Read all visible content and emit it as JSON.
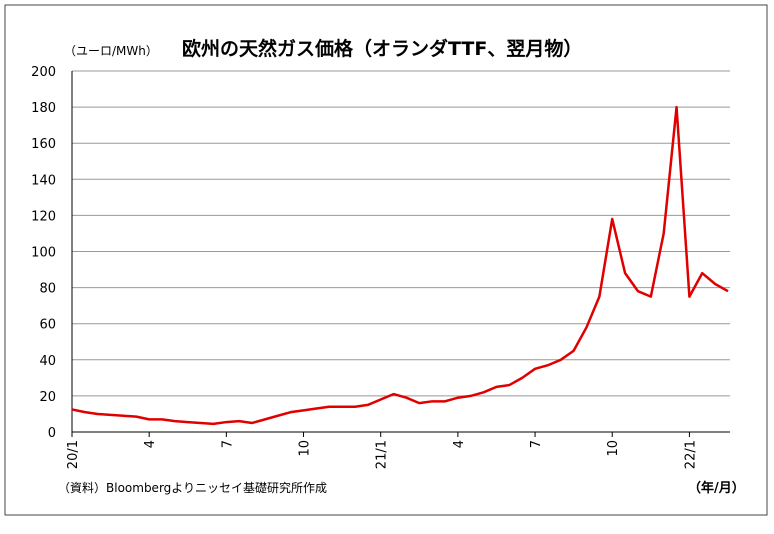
{
  "chart_data": {
    "type": "line",
    "title": "欧州の天然ガス価格（オランダTTF、翌月物）",
    "y_label": "（ユーロ/MWh）",
    "x_label": "（年/月）",
    "source": "（資料）Bloombergよりニッセイ基礎研究所作成",
    "categories": [
      "20/1",
      null,
      null,
      null,
      null,
      null,
      "4",
      null,
      null,
      null,
      null,
      null,
      "7",
      null,
      null,
      null,
      null,
      null,
      "10",
      null,
      null,
      null,
      null,
      null,
      "21/1",
      null,
      null,
      null,
      null,
      null,
      "4",
      null,
      null,
      null,
      null,
      null,
      "7",
      null,
      null,
      null,
      null,
      null,
      "10",
      null,
      null,
      null,
      null,
      null,
      "22/1",
      null,
      null,
      null
    ],
    "series": [
      {
        "name": "TTF",
        "color": "#e00000",
        "values": [
          12.5,
          11,
          10,
          9.5,
          9,
          8.5,
          7,
          7,
          6,
          5.5,
          5,
          4.5,
          5.5,
          6,
          5,
          7,
          9,
          11,
          12,
          13,
          14,
          14,
          14,
          15,
          18,
          21,
          19,
          16,
          17,
          17,
          19,
          20,
          22,
          25,
          26,
          30,
          35,
          37,
          40,
          45,
          58,
          75,
          118,
          88,
          78,
          75,
          110,
          180,
          75,
          88,
          82,
          78
        ]
      }
    ],
    "ylim": [
      0,
      200
    ],
    "yticks": [
      0,
      20,
      40,
      60,
      80,
      100,
      120,
      140,
      160,
      180,
      200
    ],
    "grid": true
  }
}
